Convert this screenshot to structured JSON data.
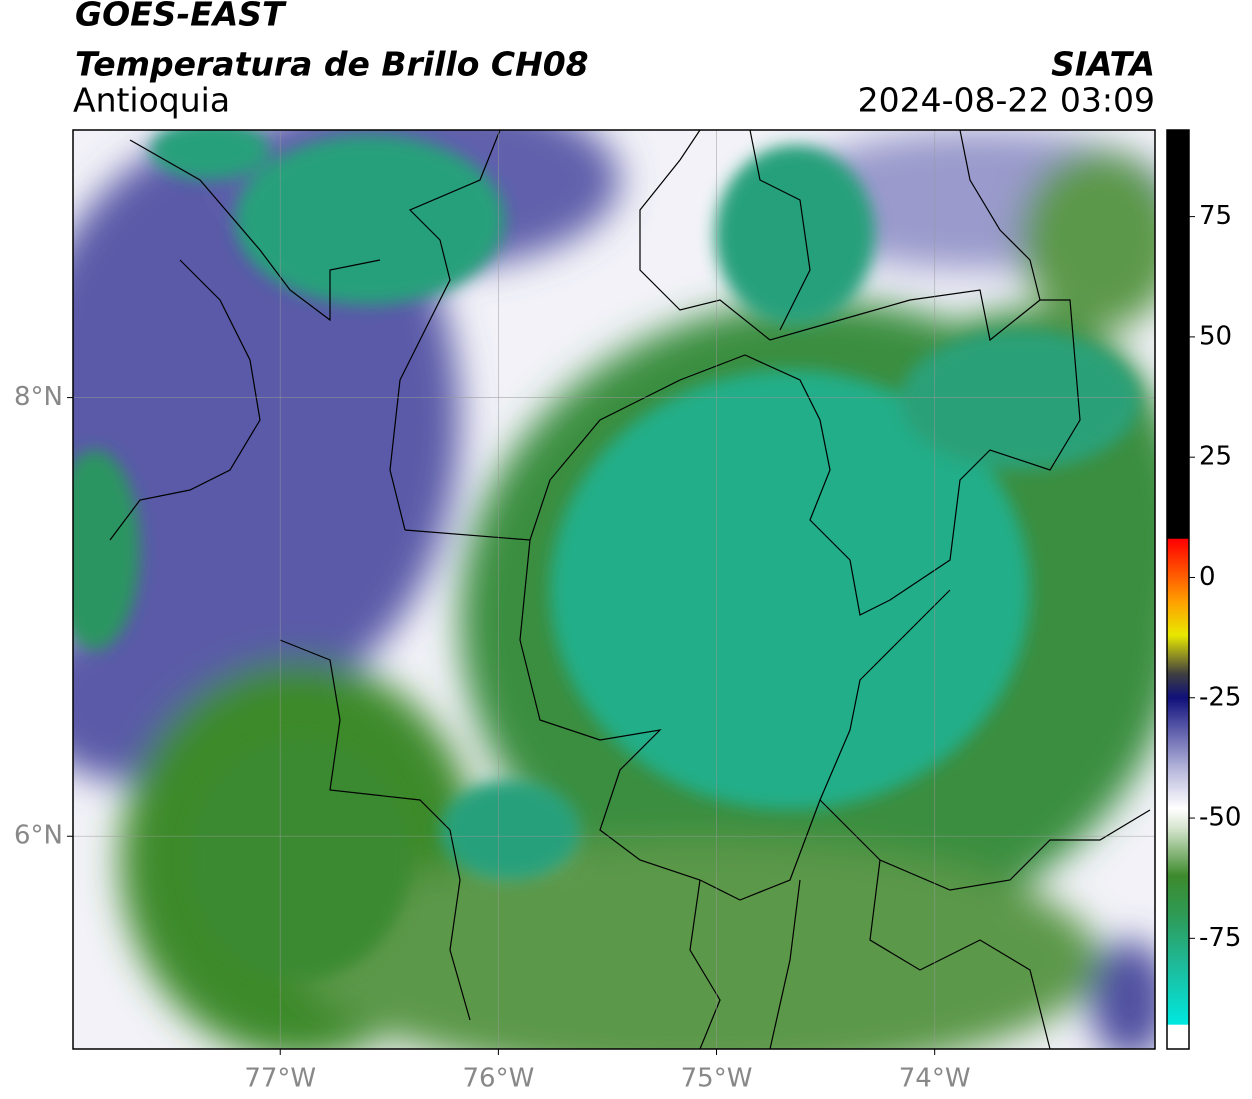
{
  "header": {
    "satellite": "GOES-EAST",
    "title": "Temperatura de Brillo CH08",
    "region": "Antioquia",
    "source": "SIATA",
    "datetime": "2024-08-22 03:09"
  },
  "map": {
    "xlim": [
      -77.95,
      -72.99
    ],
    "ylim": [
      5.03,
      9.22
    ],
    "xticks": [
      {
        "value": -77,
        "label": "77°W"
      },
      {
        "value": -76,
        "label": "76°W"
      },
      {
        "value": -75,
        "label": "75°W"
      },
      {
        "value": -74,
        "label": "74°W"
      }
    ],
    "yticks": [
      {
        "value": 8,
        "label": "8°N"
      },
      {
        "value": 6,
        "label": "6°N"
      }
    ],
    "grid": true
  },
  "colorbar": {
    "lim": [
      -98,
      93
    ],
    "ticks": [
      75,
      50,
      25,
      0,
      -25,
      -50,
      -75
    ],
    "stops": [
      {
        "value": -98,
        "color": "#ffffff"
      },
      {
        "value": -93,
        "color": "#ffffff"
      },
      {
        "value": -92.9,
        "color": "#00e8e0"
      },
      {
        "value": -80,
        "color": "#1fb896"
      },
      {
        "value": -70,
        "color": "#2e9a55"
      },
      {
        "value": -62,
        "color": "#3d8a2c"
      },
      {
        "value": -52,
        "color": "#d8e6d0"
      },
      {
        "value": -48,
        "color": "#ffffff"
      },
      {
        "value": -40,
        "color": "#b8b8dc"
      },
      {
        "value": -30,
        "color": "#4a4aa0"
      },
      {
        "value": -25,
        "color": "#10107a"
      },
      {
        "value": -20,
        "color": "#404040"
      },
      {
        "value": -12,
        "color": "#e8e800"
      },
      {
        "value": -5,
        "color": "#ffa000"
      },
      {
        "value": 0,
        "color": "#ff6000"
      },
      {
        "value": 8,
        "color": "#ff0000"
      },
      {
        "value": 8.1,
        "color": "#000000"
      },
      {
        "value": 93,
        "color": "#000000"
      }
    ]
  }
}
